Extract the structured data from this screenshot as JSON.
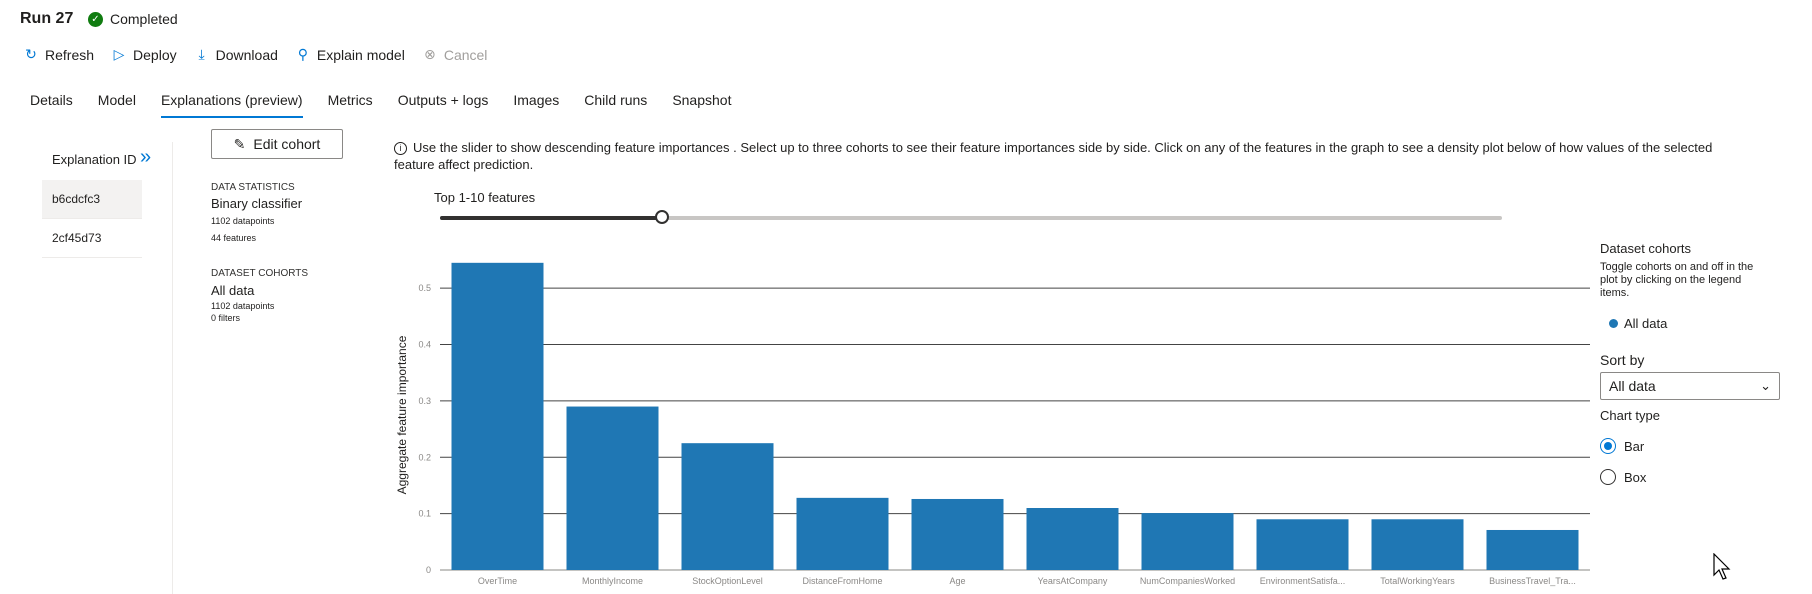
{
  "run": {
    "title": "Run 27",
    "status": "Completed"
  },
  "toolbar": {
    "refresh": "Refresh",
    "deploy": "Deploy",
    "download": "Download",
    "explain_model": "Explain model",
    "cancel": "Cancel"
  },
  "tabs": [
    "Details",
    "Model",
    "Explanations (preview)",
    "Metrics",
    "Outputs + logs",
    "Images",
    "Child runs",
    "Snapshot"
  ],
  "active_tab": "Explanations (preview)",
  "explanations": {
    "header": "Explanation ID",
    "items": [
      "b6cdcfc3",
      "2cf45d73"
    ],
    "selected": "b6cdcfc3"
  },
  "cohort_panel": {
    "edit_cohort": "Edit cohort",
    "data_statistics_label": "DATA STATISTICS",
    "classifier": "Binary classifier",
    "datapoints": "1102 datapoints",
    "features": "44 features",
    "dataset_cohorts_label": "DATASET COHORTS",
    "cohort_name": "All data",
    "cohort_datapoints": "1102 datapoints",
    "cohort_filters": "0 filters"
  },
  "info_text": "Use the slider to show descending feature importances . Select up to three cohorts to see their feature importances side by side. Click on any of the features in the graph to see a density plot below of how values of the selected feature affect prediction.",
  "slider": {
    "label": "Top 1-10 features",
    "value_fraction": 0.21
  },
  "right_panel": {
    "title": "Dataset cohorts",
    "description": "Toggle cohorts on and off in the plot by clicking on the legend items.",
    "legend": "All data",
    "sort_by_label": "Sort by",
    "sort_by_value": "All data",
    "chart_type_label": "Chart type",
    "options": [
      "Bar",
      "Box"
    ],
    "selected_option": "Bar"
  },
  "colors": {
    "accent": "#0078d4",
    "bar": "#1f77b4",
    "success": "#107c10"
  },
  "chart_data": {
    "type": "bar",
    "ylabel": "Aggregate feature importance",
    "xlabel": "",
    "ylim": [
      0,
      0.55
    ],
    "yticks": [
      "0",
      "0.1",
      "0.2",
      "0.3",
      "0.4",
      "0.5"
    ],
    "categories": [
      "OverTime",
      "MonthlyIncome",
      "StockOptionLevel",
      "DistanceFromHome",
      "Age",
      "YearsAtCompany",
      "NumCompaniesWorked",
      "EnvironmentSatisfa...",
      "TotalWorkingYears",
      "BusinessTravel_Tra..."
    ],
    "series": [
      {
        "values": [
          0.545,
          0.29,
          0.225,
          0.128,
          0.126,
          0.11,
          0.101,
          0.09,
          0.09,
          0.071
        ]
      }
    ],
    "grid": true
  }
}
